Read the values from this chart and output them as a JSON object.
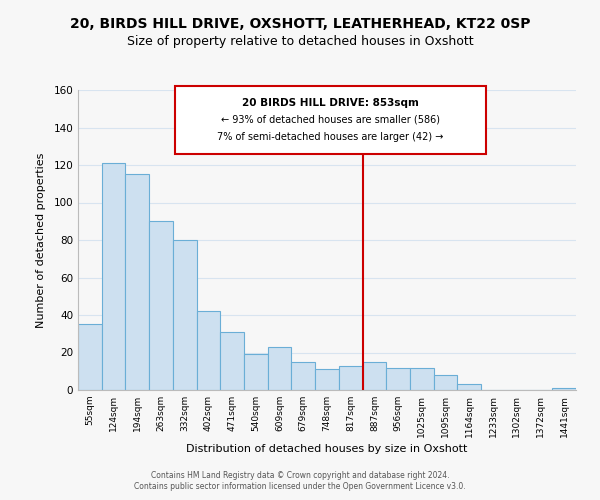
{
  "title": "20, BIRDS HILL DRIVE, OXSHOTT, LEATHERHEAD, KT22 0SP",
  "subtitle": "Size of property relative to detached houses in Oxshott",
  "xlabel": "Distribution of detached houses by size in Oxshott",
  "ylabel": "Number of detached properties",
  "bar_labels": [
    "55sqm",
    "124sqm",
    "194sqm",
    "263sqm",
    "332sqm",
    "402sqm",
    "471sqm",
    "540sqm",
    "609sqm",
    "679sqm",
    "748sqm",
    "817sqm",
    "887sqm",
    "956sqm",
    "1025sqm",
    "1095sqm",
    "1164sqm",
    "1233sqm",
    "1302sqm",
    "1372sqm",
    "1441sqm"
  ],
  "bar_values": [
    35,
    121,
    115,
    90,
    80,
    42,
    31,
    19,
    23,
    15,
    11,
    13,
    15,
    12,
    12,
    8,
    3,
    0,
    0,
    0,
    1
  ],
  "bar_color": "#cde0f0",
  "bar_edge_color": "#6aaed6",
  "ylim": [
    0,
    160
  ],
  "yticks": [
    0,
    20,
    40,
    60,
    80,
    100,
    120,
    140,
    160
  ],
  "property_label": "20 BIRDS HILL DRIVE: 853sqm",
  "annotation_line1": "← 93% of detached houses are smaller (586)",
  "annotation_line2": "7% of semi-detached houses are larger (42) →",
  "vline_color": "#cc0000",
  "footer1": "Contains HM Land Registry data © Crown copyright and database right 2024.",
  "footer2": "Contains public sector information licensed under the Open Government Licence v3.0.",
  "background_color": "#f7f7f7",
  "grid_color": "#d8e4f0",
  "title_fontsize": 10,
  "subtitle_fontsize": 9
}
